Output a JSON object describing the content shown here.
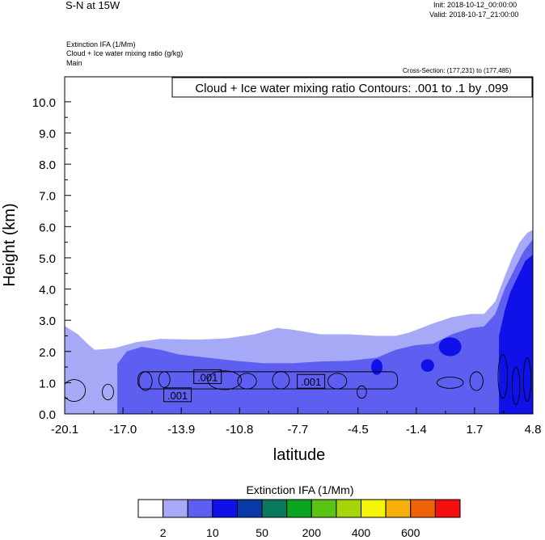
{
  "header": {
    "title_left": "S-N at 15W",
    "init_time": "Init: 2018-10-12_00:00:00",
    "valid_time": "Valid: 2018-10-17_21:00:00",
    "field_line1": "Extinction IFA   (1/Mm)",
    "field_line2": "Cloud + Ice water mixing ratio   (g/kg)",
    "field_line3": "Main",
    "cross_section": "Cross-Section: (177,231) to (177,485)"
  },
  "chart_data": {
    "type": "area",
    "title": "Cloud + Ice water mixing ratio Contours: .001 to .1 by .099",
    "xlabel": "latitude",
    "ylabel": "Height (km)",
    "x_tick_labels": [
      "-20.1",
      "-17.0",
      "-13.9",
      "-10.8",
      "-7.7",
      "-4.5",
      "-1.4",
      "1.7",
      "4.8"
    ],
    "y_tick_labels": [
      "0.0",
      "1.0",
      "2.0",
      "3.0",
      "4.0",
      "5.0",
      "6.0",
      "7.0",
      "8.0",
      "9.0",
      "10.0"
    ],
    "xlim": [
      -20.1,
      4.8
    ],
    "ylim": [
      0.0,
      10.8
    ],
    "contour_labels": [
      {
        "text": ".001",
        "x": -12.5,
        "y": 1.18
      },
      {
        "text": ".001",
        "x": -14.1,
        "y": 0.6
      },
      {
        "text": ".001",
        "x": -7.0,
        "y": 1.03
      }
    ],
    "filled_regions": [
      {
        "level": 2,
        "color": "#a6a9f6",
        "top": [
          [
            -20.1,
            2.82
          ],
          [
            -19.4,
            2.55
          ],
          [
            -18.8,
            2.2
          ],
          [
            -18.5,
            2.05
          ],
          [
            -17.5,
            2.1
          ],
          [
            -16.3,
            2.3
          ],
          [
            -15.0,
            2.4
          ],
          [
            -13.0,
            2.38
          ],
          [
            -11.5,
            2.42
          ],
          [
            -10.0,
            2.55
          ],
          [
            -8.8,
            2.75
          ],
          [
            -8.0,
            2.7
          ],
          [
            -6.5,
            2.55
          ],
          [
            -5.0,
            2.55
          ],
          [
            -3.5,
            2.5
          ],
          [
            -2.5,
            2.5
          ],
          [
            -1.8,
            2.6
          ],
          [
            -0.5,
            2.9
          ],
          [
            0.5,
            3.1
          ],
          [
            1.5,
            3.2
          ],
          [
            2.2,
            3.2
          ],
          [
            2.8,
            3.6
          ],
          [
            3.3,
            4.4
          ],
          [
            3.7,
            5.0
          ],
          [
            4.1,
            5.5
          ],
          [
            4.5,
            5.8
          ],
          [
            4.8,
            5.9
          ]
        ]
      },
      {
        "level": 10,
        "color": "#5e5ef0",
        "top": [
          [
            -17.3,
            1.6
          ],
          [
            -16.8,
            2.0
          ],
          [
            -16.0,
            2.15
          ],
          [
            -15.0,
            2.05
          ],
          [
            -14.0,
            1.9
          ],
          [
            -12.5,
            1.8
          ],
          [
            -11.0,
            1.7
          ],
          [
            -9.5,
            1.62
          ],
          [
            -8.0,
            1.62
          ],
          [
            -6.5,
            1.68
          ],
          [
            -5.0,
            1.7
          ],
          [
            -3.5,
            1.8
          ],
          [
            -2.5,
            2.05
          ],
          [
            -1.5,
            2.2
          ],
          [
            -0.5,
            2.25
          ],
          [
            0.5,
            2.55
          ],
          [
            1.5,
            2.75
          ],
          [
            2.2,
            2.8
          ],
          [
            2.8,
            3.2
          ],
          [
            3.3,
            4.0
          ],
          [
            3.8,
            4.6
          ],
          [
            4.3,
            5.2
          ],
          [
            4.8,
            5.6
          ]
        ],
        "bottom_edge": 1.0
      },
      {
        "level": 50,
        "color": "#1010e8",
        "top": [
          [
            3.0,
            2.5
          ],
          [
            3.3,
            3.3
          ],
          [
            3.6,
            3.9
          ],
          [
            4.0,
            4.4
          ],
          [
            4.4,
            4.9
          ],
          [
            4.8,
            5.1
          ]
        ],
        "bottom_edge": 1.0
      }
    ]
  },
  "colorbar": {
    "title": "Extinction IFA  (1/Mm)",
    "colors": [
      "#ffffff",
      "#a6a9f6",
      "#5e5ef0",
      "#1010e8",
      "#0a3aa8",
      "#0b7a5c",
      "#0aa622",
      "#5ac414",
      "#a6d60a",
      "#f5f50a",
      "#f5b00a",
      "#f0620a",
      "#f51010"
    ],
    "tick_labels": [
      "2",
      "10",
      "50",
      "200",
      "400",
      "600"
    ],
    "tick_indices": [
      1,
      3,
      5,
      7,
      9,
      11
    ]
  }
}
